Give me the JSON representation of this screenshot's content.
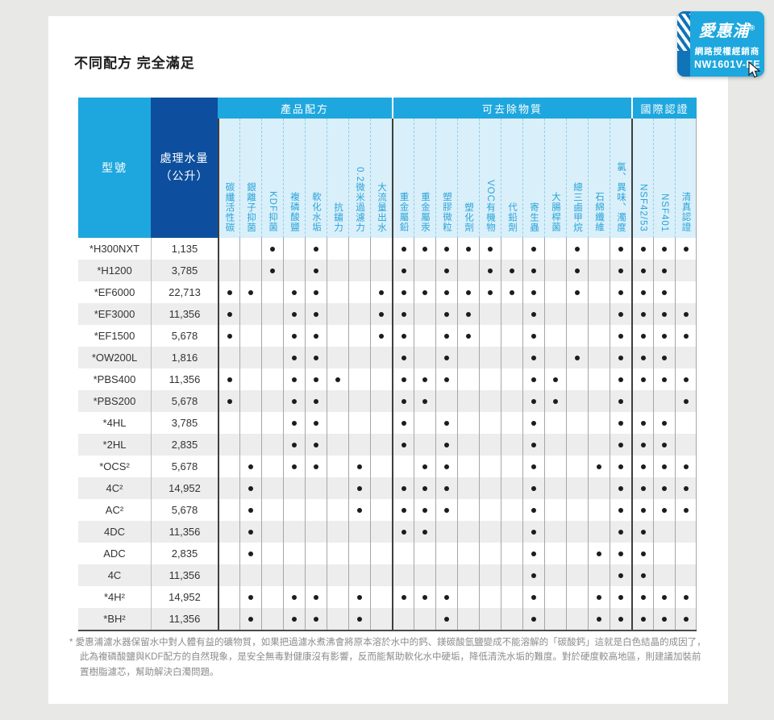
{
  "page": {
    "title": "不同配方 完全滿足"
  },
  "badge": {
    "brand": "愛惠浦",
    "reg": "®",
    "subtitle": "網路授權經銷商",
    "code": "NW1601V-EE"
  },
  "table": {
    "model_header": "型號",
    "volume_header_line1": "處理水量",
    "volume_header_line2": "（公升）",
    "groups": [
      {
        "label": "產品配方",
        "span": 8
      },
      {
        "label": "可去除物質",
        "span": 11
      },
      {
        "label": "國際認證",
        "span": 3
      }
    ],
    "columns": [
      "碳纖活性碳",
      "銀離子抑菌",
      "KDF抑菌",
      "複磷酸鹽",
      "軟化水垢",
      "抗鏽力",
      "0.2微米過濾力",
      "大流量出水",
      "重金屬鉛",
      "重金屬汞",
      "塑膠微粒",
      "塑化劑",
      "VOC有機物",
      "代鉛劑",
      "寄生蟲",
      "大腸桿菌",
      "總三鹵甲烷",
      "石綿纖維",
      "氯、異味、濁度",
      "NSF42/53",
      "NSF401",
      "清真認證"
    ],
    "rows": [
      {
        "model": "*H300NXT",
        "volume": "1,135",
        "dots": [
          0,
          0,
          1,
          0,
          1,
          0,
          0,
          0,
          1,
          1,
          1,
          1,
          1,
          0,
          1,
          0,
          1,
          0,
          1,
          1,
          1,
          1
        ]
      },
      {
        "model": "*H1200",
        "volume": "3,785",
        "dots": [
          0,
          0,
          1,
          0,
          1,
          0,
          0,
          0,
          1,
          0,
          1,
          0,
          1,
          1,
          1,
          0,
          1,
          0,
          1,
          1,
          1,
          0
        ]
      },
      {
        "model": "*EF6000",
        "volume": "22,713",
        "dots": [
          1,
          1,
          0,
          1,
          1,
          0,
          0,
          1,
          1,
          1,
          1,
          1,
          1,
          1,
          1,
          0,
          1,
          0,
          1,
          1,
          1,
          0
        ]
      },
      {
        "model": "*EF3000",
        "volume": "11,356",
        "dots": [
          1,
          0,
          0,
          1,
          1,
          0,
          0,
          1,
          1,
          0,
          1,
          1,
          0,
          0,
          1,
          0,
          0,
          0,
          1,
          1,
          1,
          1
        ]
      },
      {
        "model": "*EF1500",
        "volume": "5,678",
        "dots": [
          1,
          0,
          0,
          1,
          1,
          0,
          0,
          1,
          1,
          0,
          1,
          1,
          0,
          0,
          1,
          0,
          0,
          0,
          1,
          1,
          1,
          1
        ]
      },
      {
        "model": "*OW200L",
        "volume": "1,816",
        "dots": [
          0,
          0,
          0,
          1,
          1,
          0,
          0,
          0,
          1,
          0,
          1,
          0,
          0,
          0,
          1,
          0,
          1,
          0,
          1,
          1,
          1,
          0
        ]
      },
      {
        "model": "*PBS400",
        "volume": "11,356",
        "dots": [
          1,
          0,
          0,
          1,
          1,
          1,
          0,
          0,
          1,
          1,
          1,
          0,
          0,
          0,
          1,
          1,
          0,
          0,
          1,
          1,
          1,
          1
        ]
      },
      {
        "model": "*PBS200",
        "volume": "5,678",
        "dots": [
          1,
          0,
          0,
          1,
          1,
          0,
          0,
          0,
          1,
          1,
          0,
          0,
          0,
          0,
          1,
          1,
          0,
          0,
          1,
          0,
          0,
          1
        ]
      },
      {
        "model": "*4HL",
        "volume": "3,785",
        "dots": [
          0,
          0,
          0,
          1,
          1,
          0,
          0,
          0,
          1,
          0,
          1,
          0,
          0,
          0,
          1,
          0,
          0,
          0,
          1,
          1,
          1,
          0
        ]
      },
      {
        "model": "*2HL",
        "volume": "2,835",
        "dots": [
          0,
          0,
          0,
          1,
          1,
          0,
          0,
          0,
          1,
          0,
          1,
          0,
          0,
          0,
          1,
          0,
          0,
          0,
          1,
          1,
          1,
          0
        ]
      },
      {
        "model": "*OCS²",
        "volume": "5,678",
        "dots": [
          0,
          1,
          0,
          1,
          1,
          0,
          1,
          0,
          0,
          1,
          1,
          0,
          0,
          0,
          1,
          0,
          0,
          1,
          1,
          1,
          1,
          1
        ]
      },
      {
        "model": "4C²",
        "volume": "14,952",
        "dots": [
          0,
          1,
          0,
          0,
          0,
          0,
          1,
          0,
          1,
          1,
          1,
          0,
          0,
          0,
          1,
          0,
          0,
          0,
          1,
          1,
          1,
          1
        ]
      },
      {
        "model": "AC²",
        "volume": "5,678",
        "dots": [
          0,
          1,
          0,
          0,
          0,
          0,
          1,
          0,
          1,
          1,
          1,
          0,
          0,
          0,
          1,
          0,
          0,
          0,
          1,
          1,
          1,
          1
        ]
      },
      {
        "model": "4DC",
        "volume": "11,356",
        "dots": [
          0,
          1,
          0,
          0,
          0,
          0,
          0,
          0,
          1,
          1,
          0,
          0,
          0,
          0,
          1,
          0,
          0,
          0,
          1,
          1,
          0,
          0
        ]
      },
      {
        "model": "ADC",
        "volume": "2,835",
        "dots": [
          0,
          1,
          0,
          0,
          0,
          0,
          0,
          0,
          0,
          0,
          0,
          0,
          0,
          0,
          1,
          0,
          0,
          1,
          1,
          1,
          0,
          0
        ]
      },
      {
        "model": "4C",
        "volume": "11,356",
        "dots": [
          0,
          0,
          0,
          0,
          0,
          0,
          0,
          0,
          0,
          0,
          0,
          0,
          0,
          0,
          1,
          0,
          0,
          0,
          1,
          1,
          0,
          0
        ]
      },
      {
        "model": "*4H²",
        "volume": "14,952",
        "dots": [
          0,
          1,
          0,
          1,
          1,
          0,
          1,
          0,
          1,
          1,
          1,
          0,
          0,
          0,
          1,
          0,
          0,
          1,
          1,
          1,
          1,
          1
        ]
      },
      {
        "model": "*BH²",
        "volume": "11,356",
        "dots": [
          0,
          1,
          0,
          1,
          1,
          0,
          1,
          0,
          0,
          0,
          1,
          0,
          0,
          0,
          1,
          0,
          0,
          1,
          1,
          1,
          1,
          1
        ]
      }
    ]
  },
  "footnote": "* 愛惠浦濾水器保留水中對人體有益的礦物質，如果把過濾水煮沸會將原本溶於水中的鈣、鎂碳酸氫鹽變成不能溶解的「碳酸鈣」這就是白色結晶的成因了，此為複磷酸鹽與KDF配方的自然現象，是安全無毒對健康沒有影響，反而能幫助軟化水中硬垢，降低清洗水垢的難度。對於硬度較高地區，則建議加裝前置樹脂濾芯，幫助解決白濁問題。",
  "colors": {
    "accent_blue": "#1ea7de",
    "navy_blue": "#0d4f9e",
    "header_light_blue": "#d9effa",
    "header_text_blue": "#2aa4d8",
    "badge_strip_blue": "#1173b8",
    "row_stripe_gray": "#ededed",
    "dot_black": "#1c1c1c",
    "page_background": "#e8e8e6"
  }
}
